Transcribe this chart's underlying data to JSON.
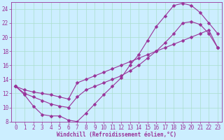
{
  "xlabel": "Windchill (Refroidissement éolien,°C)",
  "bg_color": "#cceeff",
  "grid_color": "#aaddcc",
  "line_color": "#993399",
  "xlim": [
    -0.5,
    23.5
  ],
  "ylim": [
    8,
    25
  ],
  "xticks": [
    0,
    1,
    2,
    3,
    4,
    5,
    6,
    7,
    8,
    9,
    10,
    11,
    12,
    13,
    14,
    15,
    16,
    17,
    18,
    19,
    20,
    21,
    22,
    23
  ],
  "yticks": [
    8,
    10,
    12,
    14,
    16,
    18,
    20,
    22,
    24
  ],
  "line1_x": [
    0,
    1,
    2,
    3,
    4,
    5,
    6,
    7,
    8,
    9,
    10,
    11,
    12,
    13,
    14,
    15,
    16,
    17,
    18,
    19,
    20,
    21,
    22,
    23
  ],
  "line1_y": [
    13.0,
    11.8,
    10.2,
    9.0,
    8.8,
    8.8,
    8.2,
    8.0,
    9.2,
    10.5,
    11.8,
    13.0,
    14.2,
    16.0,
    17.5,
    19.5,
    21.5,
    23.0,
    24.5,
    24.8,
    24.5,
    23.5,
    22.0,
    20.5
  ],
  "line2_x": [
    0,
    1,
    2,
    3,
    4,
    5,
    6,
    7,
    8,
    9,
    10,
    11,
    12,
    13,
    14,
    15,
    16,
    17,
    18,
    19,
    20,
    21,
    22,
    23
  ],
  "line2_y": [
    13.0,
    12.5,
    12.2,
    12.0,
    11.8,
    11.5,
    11.2,
    13.5,
    14.0,
    14.5,
    15.0,
    15.5,
    16.0,
    16.5,
    17.0,
    17.5,
    18.0,
    18.5,
    19.0,
    19.5,
    20.0,
    20.5,
    21.0,
    18.5
  ],
  "line3_x": [
    0,
    1,
    2,
    3,
    4,
    5,
    6,
    7,
    8,
    9,
    10,
    11,
    12,
    13,
    14,
    15,
    16,
    17,
    18,
    19,
    20,
    21,
    22,
    23
  ],
  "line3_y": [
    13.0,
    12.0,
    11.5,
    11.0,
    10.5,
    10.2,
    10.0,
    11.5,
    12.5,
    13.0,
    13.5,
    14.0,
    14.5,
    15.2,
    16.0,
    17.0,
    18.0,
    19.2,
    20.5,
    22.0,
    22.2,
    21.8,
    20.5,
    18.5
  ],
  "marker": "D",
  "markersize": 2.5,
  "linewidth": 0.8,
  "tick_fontsize": 5.5,
  "xlabel_fontsize": 5.5
}
